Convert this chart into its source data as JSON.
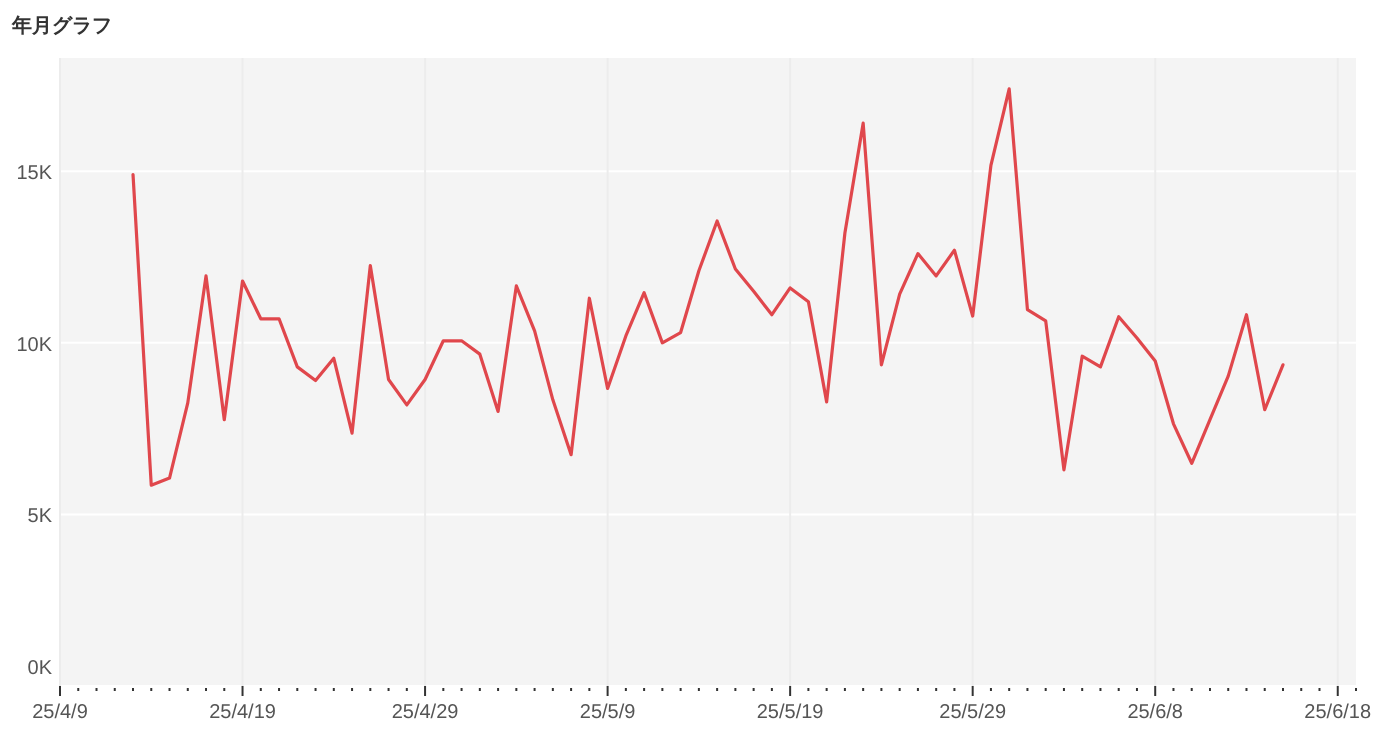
{
  "chart_data": {
    "type": "line",
    "title": "年月グラフ",
    "x": [
      "--04-13",
      "--04-14",
      "--04-15",
      "--04-16",
      "--04-17",
      "--04-18",
      "--04-19",
      "--04-20",
      "--04-21",
      "--04-22",
      "--04-23",
      "--04-24",
      "--04-25",
      "--04-26",
      "--04-27",
      "--04-28",
      "--04-29",
      "--04-30",
      "--05-01",
      "--05-02",
      "--05-03",
      "--05-04",
      "--05-05",
      "--05-06",
      "--05-07",
      "--05-08",
      "--05-09",
      "--05-10",
      "--05-11",
      "--05-12",
      "--05-13",
      "--05-14",
      "--05-15",
      "--05-16",
      "--05-17",
      "--05-18",
      "--05-19",
      "--05-20",
      "--05-21",
      "--05-22",
      "--05-23",
      "--05-24",
      "--05-25",
      "--05-26",
      "--05-27",
      "--05-28",
      "--05-29",
      "--05-30",
      "--05-31",
      "--06-01",
      "--06-02",
      "--06-03",
      "--06-04",
      "--06-05",
      "--06-06",
      "--06-07",
      "--06-08",
      "--06-09",
      "--06-10",
      "--06-11",
      "--06-12",
      "--06-13",
      "--06-14",
      "--06-15"
    ],
    "series": [
      {
        "color": "#e0474c",
        "values": [
          14900,
          5850,
          6060,
          8250,
          11950,
          7760,
          11800,
          10700,
          10700,
          9300,
          8900,
          9550,
          7370,
          12250,
          8930,
          8190,
          8930,
          10060,
          10060,
          9670,
          8000,
          11660,
          10350,
          8340,
          6740,
          11300,
          8670,
          10200,
          11460,
          10000,
          10300,
          12100,
          13550,
          12150,
          11500,
          10820,
          11600,
          11200,
          8280,
          13200,
          16400,
          9360,
          11420,
          12600,
          11950,
          12700,
          10780,
          15170,
          17400,
          10970,
          10640,
          6300,
          9610,
          9300,
          10760,
          10140,
          9470,
          7640,
          6490,
          7760,
          9030,
          10820,
          8050,
          9360
        ]
      }
    ],
    "xlim": [
      "--04-09",
      "--06-19"
    ],
    "xticks": [
      {
        "value": "--04-09",
        "label": "25/4/9"
      },
      {
        "value": "--04-10",
        "label": null
      },
      {
        "value": "--04-11",
        "label": null
      },
      {
        "value": "--04-12",
        "label": null
      },
      {
        "value": "--04-13",
        "label": null
      },
      {
        "value": "--04-14",
        "label": null
      },
      {
        "value": "--04-15",
        "label": null
      },
      {
        "value": "--04-16",
        "label": null
      },
      {
        "value": "--04-17",
        "label": null
      },
      {
        "value": "--04-18",
        "label": null
      },
      {
        "value": "--04-19",
        "label": "25/4/19"
      },
      {
        "value": "--04-20",
        "label": null
      },
      {
        "value": "--04-21",
        "label": null
      },
      {
        "value": "--04-22",
        "label": null
      },
      {
        "value": "--04-23",
        "label": null
      },
      {
        "value": "--04-24",
        "label": null
      },
      {
        "value": "--04-25",
        "label": null
      },
      {
        "value": "--04-26",
        "label": null
      },
      {
        "value": "--04-27",
        "label": null
      },
      {
        "value": "--04-28",
        "label": null
      },
      {
        "value": "--04-29",
        "label": "25/4/29"
      },
      {
        "value": "--04-30",
        "label": null
      },
      {
        "value": "--05-01",
        "label": null
      },
      {
        "value": "--05-02",
        "label": null
      },
      {
        "value": "--05-03",
        "label": null
      },
      {
        "value": "--05-04",
        "label": null
      },
      {
        "value": "--05-05",
        "label": null
      },
      {
        "value": "--05-06",
        "label": null
      },
      {
        "value": "--05-07",
        "label": null
      },
      {
        "value": "--05-08",
        "label": null
      },
      {
        "value": "--05-09",
        "label": "25/5/9"
      },
      {
        "value": "--05-10",
        "label": null
      },
      {
        "value": "--05-11",
        "label": null
      },
      {
        "value": "--05-12",
        "label": null
      },
      {
        "value": "--05-13",
        "label": null
      },
      {
        "value": "--05-14",
        "label": null
      },
      {
        "value": "--05-15",
        "label": null
      },
      {
        "value": "--05-16",
        "label": null
      },
      {
        "value": "--05-17",
        "label": null
      },
      {
        "value": "--05-18",
        "label": null
      },
      {
        "value": "--05-19",
        "label": "25/5/19"
      },
      {
        "value": "--05-20",
        "label": null
      },
      {
        "value": "--05-21",
        "label": null
      },
      {
        "value": "--05-22",
        "label": null
      },
      {
        "value": "--05-23",
        "label": null
      },
      {
        "value": "--05-24",
        "label": null
      },
      {
        "value": "--05-25",
        "label": null
      },
      {
        "value": "--05-26",
        "label": null
      },
      {
        "value": "--05-27",
        "label": null
      },
      {
        "value": "--05-28",
        "label": null
      },
      {
        "value": "--05-29",
        "label": "25/5/29"
      },
      {
        "value": "--05-30",
        "label": null
      },
      {
        "value": "--05-31",
        "label": null
      },
      {
        "value": "--06-01",
        "label": null
      },
      {
        "value": "--06-02",
        "label": null
      },
      {
        "value": "--06-03",
        "label": null
      },
      {
        "value": "--06-04",
        "label": null
      },
      {
        "value": "--06-05",
        "label": null
      },
      {
        "value": "--06-06",
        "label": null
      },
      {
        "value": "--06-07",
        "label": null
      },
      {
        "value": "--06-08",
        "label": "25/6/8"
      },
      {
        "value": "--06-09",
        "label": null
      },
      {
        "value": "--06-10",
        "label": null
      },
      {
        "value": "--06-11",
        "label": null
      },
      {
        "value": "--06-12",
        "label": null
      },
      {
        "value": "--06-13",
        "label": null
      },
      {
        "value": "--06-14",
        "label": null
      },
      {
        "value": "--06-15",
        "label": null
      },
      {
        "value": "--06-16",
        "label": null
      },
      {
        "value": "--06-17",
        "label": null
      },
      {
        "value": "--06-18",
        "label": "25/6/18"
      },
      {
        "value": "--06-19",
        "label": null
      }
    ],
    "ylim": [
      0,
      18300
    ],
    "yticks": [
      {
        "value": 0,
        "label": "0K"
      },
      {
        "value": 5000,
        "label": "5K"
      },
      {
        "value": 10000,
        "label": "10K"
      },
      {
        "value": 15000,
        "label": "15K"
      }
    ],
    "grid": true,
    "marker": "none",
    "line_style": "solid"
  }
}
